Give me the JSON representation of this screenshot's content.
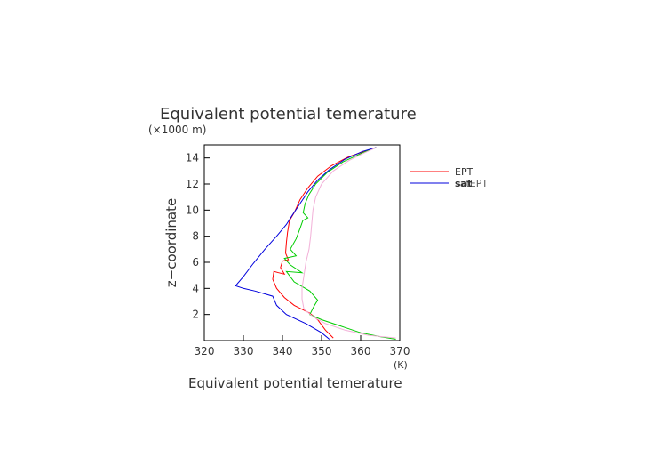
{
  "chart_data": {
    "type": "line",
    "title": "Equivalent potential temerature",
    "xlabel": "Equivalent potential temerature",
    "xunit": "(K)",
    "ylabel": "z−coordinate",
    "yunit": "(×1000 m)",
    "xlim": [
      320,
      370
    ],
    "ylim": [
      0,
      15
    ],
    "xticks": [
      320,
      330,
      340,
      350,
      360,
      370
    ],
    "yticks": [
      2,
      4,
      6,
      8,
      10,
      12,
      14
    ],
    "grid": false,
    "legend_position": "right",
    "series": [
      {
        "name": "EPT",
        "color": "#ff0000",
        "points": [
          [
            353.0,
            0.2
          ],
          [
            351.0,
            0.8
          ],
          [
            349.0,
            1.6
          ],
          [
            347.0,
            2.1
          ],
          [
            343.0,
            2.7
          ],
          [
            340.5,
            3.3
          ],
          [
            338.5,
            4.0
          ],
          [
            337.5,
            4.7
          ],
          [
            337.8,
            5.3
          ],
          [
            339.0,
            5.2
          ],
          [
            340.5,
            5.1
          ],
          [
            339.5,
            5.6
          ],
          [
            340.0,
            6.1
          ],
          [
            341.5,
            6.2
          ],
          [
            340.8,
            6.7
          ],
          [
            341.0,
            7.5
          ],
          [
            341.3,
            8.3
          ],
          [
            341.8,
            9.2
          ],
          [
            343.0,
            9.8
          ],
          [
            344.5,
            10.8
          ],
          [
            346.5,
            11.7
          ],
          [
            349.0,
            12.6
          ],
          [
            352.5,
            13.4
          ],
          [
            357.0,
            14.1
          ],
          [
            362.0,
            14.6
          ],
          [
            364.0,
            14.8
          ]
        ]
      },
      {
        "name": "satEPT",
        "color": "#00cc00",
        "points": [
          [
            369.0,
            0.1
          ],
          [
            365.0,
            0.3
          ],
          [
            360.0,
            0.6
          ],
          [
            356.0,
            1.0
          ],
          [
            350.0,
            1.6
          ],
          [
            347.0,
            2.0
          ],
          [
            348.0,
            2.6
          ],
          [
            349.0,
            3.1
          ],
          [
            347.0,
            3.8
          ],
          [
            343.0,
            4.5
          ],
          [
            341.0,
            5.3
          ],
          [
            345.0,
            5.2
          ],
          [
            342.0,
            5.8
          ],
          [
            340.5,
            6.3
          ],
          [
            343.5,
            6.5
          ],
          [
            342.0,
            7.0
          ],
          [
            343.5,
            7.8
          ],
          [
            344.5,
            8.6
          ],
          [
            345.2,
            9.2
          ],
          [
            346.5,
            9.4
          ],
          [
            345.3,
            9.8
          ],
          [
            345.8,
            10.5
          ],
          [
            346.8,
            11.2
          ],
          [
            348.5,
            12.0
          ],
          [
            351.5,
            12.9
          ],
          [
            355.5,
            13.7
          ],
          [
            360.5,
            14.4
          ],
          [
            364.0,
            14.8
          ]
        ]
      },
      {
        "name": "sat",
        "color": "#0000dd",
        "points": [
          [
            352.0,
            0.1
          ],
          [
            350.0,
            0.6
          ],
          [
            346.0,
            1.3
          ],
          [
            341.0,
            2.0
          ],
          [
            338.5,
            2.7
          ],
          [
            337.5,
            3.4
          ],
          [
            333.0,
            3.8
          ],
          [
            330.0,
            4.0
          ],
          [
            328.0,
            4.2
          ],
          [
            330.0,
            4.9
          ],
          [
            332.5,
            5.9
          ],
          [
            335.5,
            7.0
          ],
          [
            338.5,
            8.0
          ],
          [
            341.0,
            8.9
          ],
          [
            342.5,
            9.6
          ],
          [
            344.5,
            10.5
          ],
          [
            346.5,
            11.4
          ],
          [
            349.0,
            12.3
          ],
          [
            352.0,
            13.1
          ],
          [
            356.0,
            13.9
          ],
          [
            360.5,
            14.5
          ],
          [
            364.0,
            14.8
          ]
        ]
      },
      {
        "name": "",
        "color": "#f2b0d8",
        "points": [
          [
            369.0,
            0.2
          ],
          [
            362.0,
            0.4
          ],
          [
            356.0,
            0.8
          ],
          [
            351.0,
            1.3
          ],
          [
            348.0,
            1.8
          ],
          [
            345.5,
            2.4
          ],
          [
            345.0,
            3.2
          ],
          [
            345.0,
            4.0
          ],
          [
            345.5,
            5.0
          ],
          [
            346.0,
            6.0
          ],
          [
            346.8,
            7.0
          ],
          [
            347.2,
            8.0
          ],
          [
            347.5,
            9.0
          ],
          [
            347.8,
            10.0
          ],
          [
            348.5,
            11.0
          ],
          [
            350.0,
            12.0
          ],
          [
            353.0,
            13.0
          ],
          [
            357.0,
            13.8
          ],
          [
            361.0,
            14.4
          ],
          [
            364.0,
            14.8
          ]
        ]
      }
    ]
  }
}
